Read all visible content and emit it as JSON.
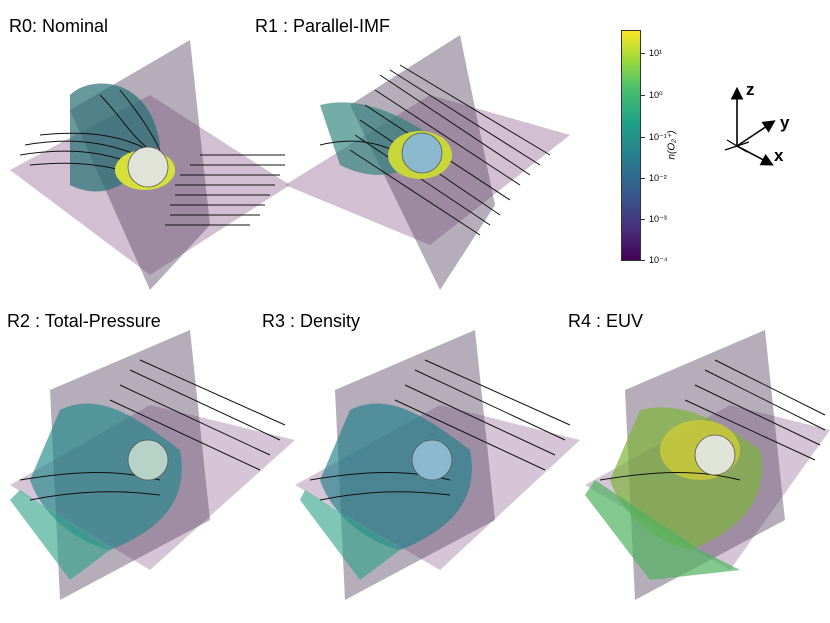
{
  "panels": [
    {
      "id": "R0",
      "title": "R0: Nominal"
    },
    {
      "id": "R1",
      "title": "R1 : Parallel-IMF"
    },
    {
      "id": "R2",
      "title": "R2 : Total-Pressure"
    },
    {
      "id": "R3",
      "title": "R3 : Density"
    },
    {
      "id": "R4",
      "title": "R4 : EUV"
    }
  ],
  "colorbar": {
    "label": "n(O₂⁺)",
    "ticks": [
      "10¹",
      "10⁰",
      "10⁻¹",
      "10⁻²",
      "10⁻³",
      "10⁻⁴"
    ],
    "colors": [
      "#440154",
      "#46327e",
      "#365c8d",
      "#277f8e",
      "#1fa187",
      "#4ac16d",
      "#a0da39",
      "#fde725"
    ]
  },
  "axes": {
    "z": "z",
    "y": "y",
    "x": "x"
  }
}
